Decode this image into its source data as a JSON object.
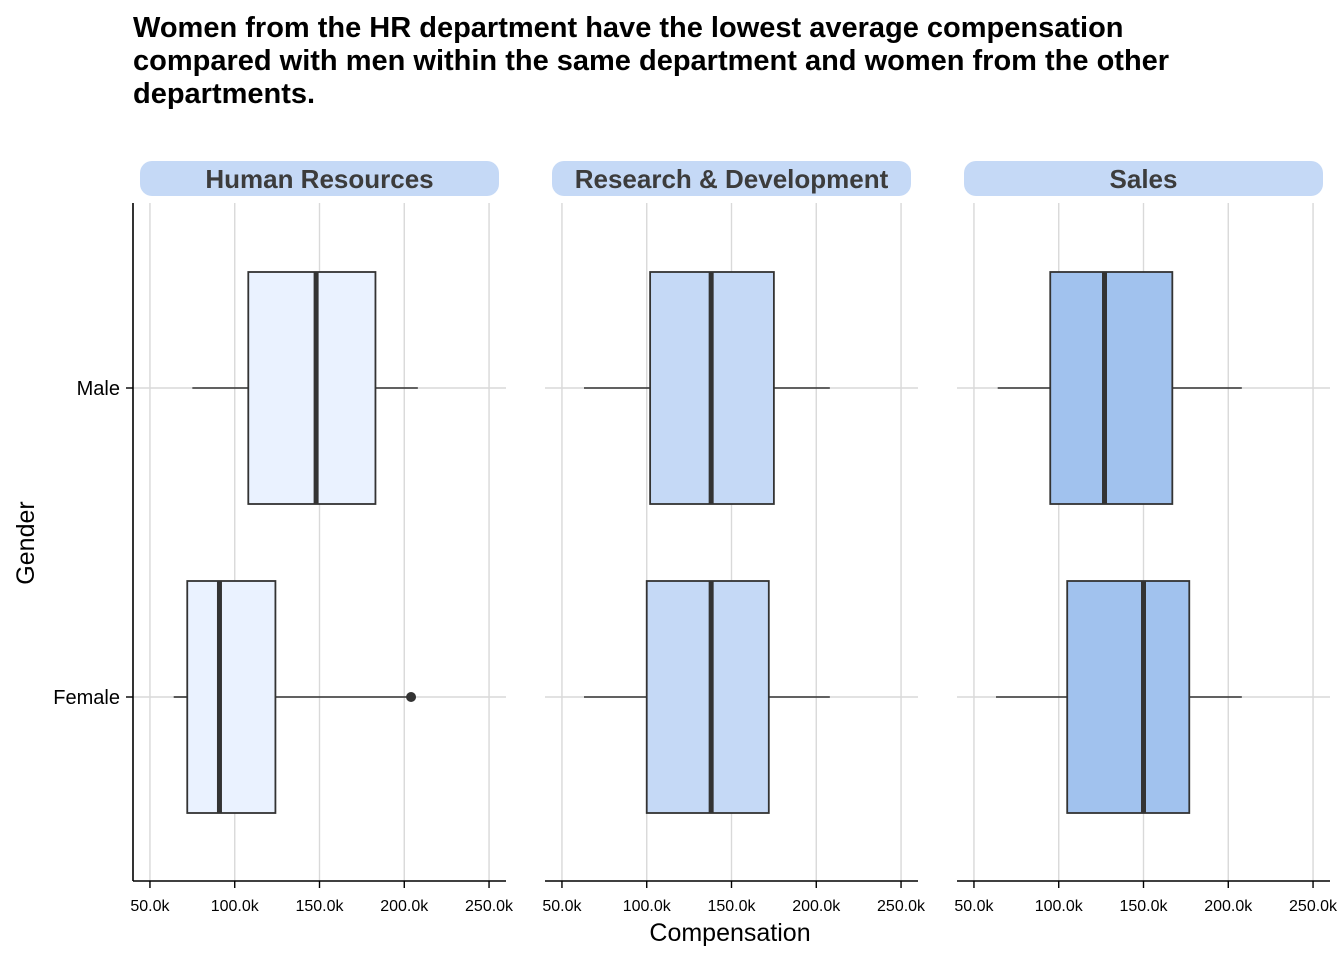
{
  "chart_data": {
    "type": "boxplot",
    "title": "Women from the HR department have the lowest average compensation compared with men within the same department and women from the other departments.",
    "title_lines": [
      "Women from the HR department have the lowest average compensation",
      "compared with men within the same department and women from the other",
      "departments."
    ],
    "xlabel": "Compensation",
    "ylabel": "Gender",
    "x_range": [
      40000,
      260000
    ],
    "x_ticks": [
      50000,
      100000,
      150000,
      200000,
      250000
    ],
    "x_tick_labels": [
      "50.0k",
      "100.0k",
      "150.0k",
      "200.0k",
      "250.0k"
    ],
    "categories": [
      "Male",
      "Female"
    ],
    "grid": "vertical and horizontal major lines",
    "legend": "none",
    "panels": [
      {
        "name": "Human Resources",
        "fill": "#eaf2ff",
        "boxes": [
          {
            "category": "Male",
            "min": 75000,
            "q1": 108000,
            "median": 148000,
            "q3": 183000,
            "max": 208000,
            "outliers": []
          },
          {
            "category": "Female",
            "min": 64000,
            "q1": 72000,
            "median": 91000,
            "q3": 124000,
            "max": 204000,
            "outliers": [
              204000
            ]
          }
        ]
      },
      {
        "name": "Research & Development",
        "fill": "#c5d9f6",
        "boxes": [
          {
            "category": "Male",
            "min": 63000,
            "q1": 102000,
            "median": 138000,
            "q3": 175000,
            "max": 208000,
            "outliers": []
          },
          {
            "category": "Female",
            "min": 63000,
            "q1": 100000,
            "median": 138000,
            "q3": 172000,
            "max": 208000,
            "outliers": []
          }
        ]
      },
      {
        "name": "Sales",
        "fill": "#a1c2ee",
        "boxes": [
          {
            "category": "Male",
            "min": 64000,
            "q1": 95000,
            "median": 127000,
            "q3": 167000,
            "max": 208000,
            "outliers": []
          },
          {
            "category": "Female",
            "min": 63000,
            "q1": 105000,
            "median": 150000,
            "q3": 177000,
            "max": 208000,
            "outliers": []
          }
        ]
      }
    ]
  },
  "colors": {
    "strip_background": "#c5d9f6",
    "box_stroke": "#333333",
    "grid": "#d9d9d9",
    "axis": "#000000"
  }
}
